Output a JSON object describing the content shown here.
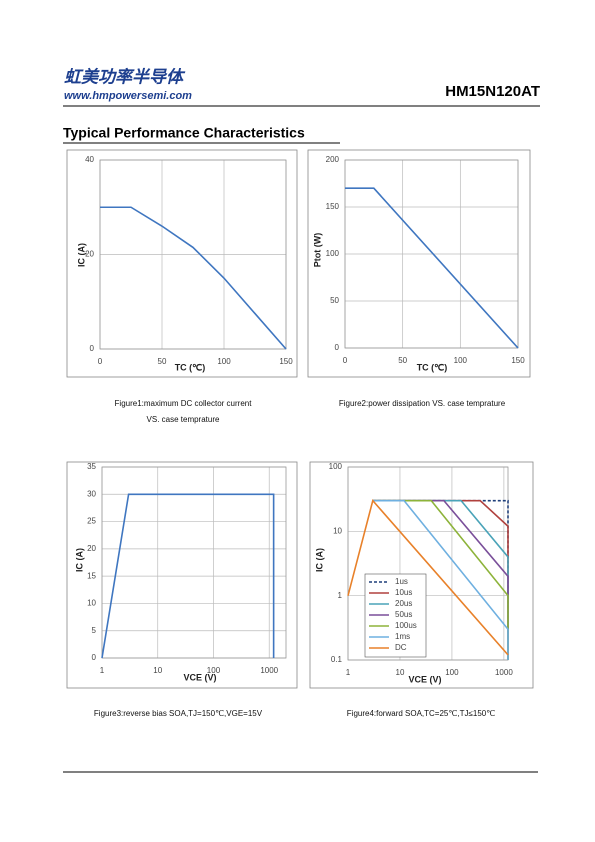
{
  "header": {
    "company": "虹美功率半导体",
    "website": "www.hmpowersemi.com",
    "part_number": "HM15N120AT"
  },
  "section_title": "Typical Performance Characteristics",
  "chart_data": [
    {
      "type": "line",
      "xlabel": "TC (℃)",
      "ylabel": "IC (A)",
      "caption": [
        "Figure1:maximum DC collector current",
        "VS. case temprature"
      ],
      "x": [
        0,
        25,
        50,
        75,
        100,
        125,
        150
      ],
      "values": [
        30,
        30,
        26,
        21.5,
        15,
        7.5,
        0
      ],
      "color": "#3f76c0",
      "xlim": [
        0,
        150
      ],
      "xticks": [
        0,
        50,
        100,
        150
      ],
      "ylim": [
        0,
        40
      ],
      "yticks": [
        0,
        20,
        40
      ],
      "grid": true
    },
    {
      "type": "line",
      "xlabel": "TC (℃)",
      "ylabel": "Ptot (W)",
      "caption": [
        "Figure2:power dissipation  VS. case temprature"
      ],
      "x": [
        0,
        25,
        150
      ],
      "values": [
        170,
        170,
        0
      ],
      "color": "#3f76c0",
      "xlim": [
        0,
        150
      ],
      "xticks": [
        0,
        50,
        100,
        150
      ],
      "ylim": [
        0,
        200
      ],
      "yticks": [
        0,
        50,
        100,
        150,
        200
      ],
      "grid": true
    },
    {
      "type": "line",
      "xlabel": "VCE (V)",
      "ylabel": "IC (A)",
      "caption": [
        "Figure3:reverse bias SOA,TJ=150℃,VGE=15V"
      ],
      "x": [
        1,
        3,
        1200,
        1200
      ],
      "values": [
        0,
        30,
        30,
        0
      ],
      "color": "#3f76c0",
      "xscale": "log",
      "xlim": [
        1,
        2000
      ],
      "xticks": [
        1,
        10,
        100,
        1000
      ],
      "ylim": [
        0,
        35
      ],
      "yticks": [
        0,
        5,
        10,
        15,
        20,
        25,
        30,
        35
      ],
      "grid": true
    },
    {
      "type": "line",
      "xlabel": "VCE (V)",
      "ylabel": "IC (A)",
      "caption": [
        "Figure4:forward SOA,TC=25℃,TJ≤150℃"
      ],
      "xscale": "log",
      "yscale": "log",
      "legend": "lower left",
      "grid": true,
      "xlim": [
        1,
        1200
      ],
      "xticks": [
        1,
        10,
        100,
        1000
      ],
      "ylim": [
        0.1,
        100
      ],
      "yticks": [
        0.1,
        1,
        10,
        100
      ],
      "series": [
        {
          "name": "1us",
          "color": "#1f3f7a",
          "dash": true,
          "x": [
            3,
            1200,
            1200
          ],
          "values": [
            30,
            30,
            0.1
          ]
        },
        {
          "name": "10us",
          "color": "#b0413e",
          "x": [
            3,
            350,
            1200,
            1200
          ],
          "values": [
            30,
            30,
            12,
            0.1
          ]
        },
        {
          "name": "20us",
          "color": "#4aa3b8",
          "x": [
            3,
            150,
            1200,
            1200
          ],
          "values": [
            30,
            30,
            4,
            0.1
          ]
        },
        {
          "name": "50us",
          "color": "#7a4f9a",
          "x": [
            3,
            70,
            1200,
            1200
          ],
          "values": [
            30,
            30,
            2,
            0.1
          ]
        },
        {
          "name": "100us",
          "color": "#8db33a",
          "x": [
            3,
            40,
            1200,
            1200
          ],
          "values": [
            30,
            30,
            1,
            0.1
          ]
        },
        {
          "name": "1ms",
          "color": "#6fb0e0",
          "x": [
            3,
            12,
            1200,
            1200
          ],
          "values": [
            30,
            30,
            0.3,
            0.1
          ]
        },
        {
          "name": "DC",
          "color": "#e8812a",
          "x": [
            1,
            3,
            1200
          ],
          "values": [
            1,
            30,
            0.12
          ]
        }
      ]
    }
  ]
}
